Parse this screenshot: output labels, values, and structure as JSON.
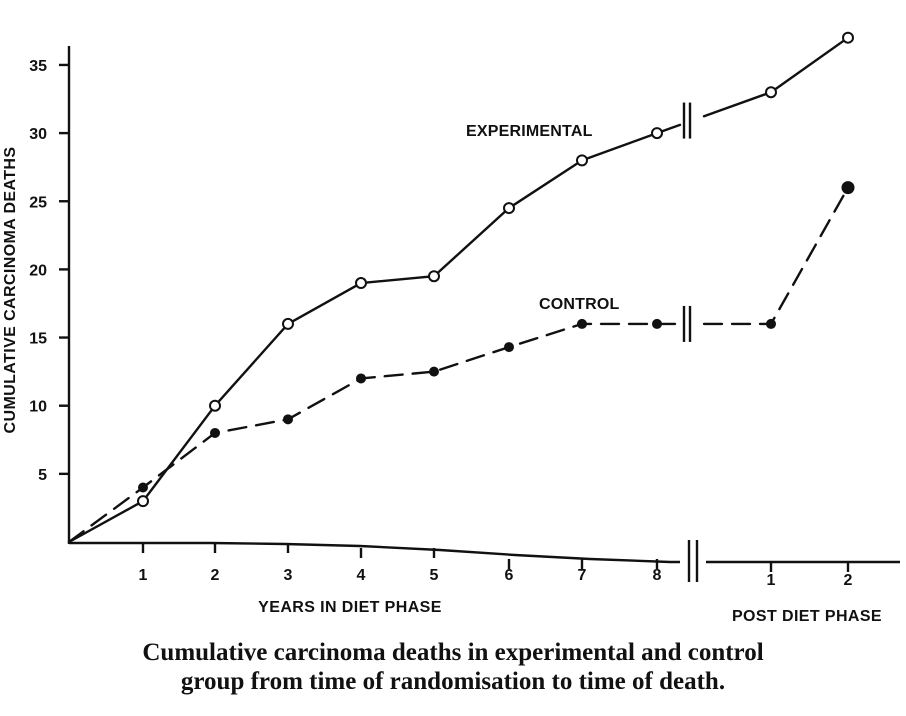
{
  "figure": {
    "caption_line_1": "Cumulative carcinoma deaths in experimental and control",
    "caption_line_2": "group from time of randomisation to time of death."
  },
  "chart_data": {
    "type": "line",
    "title": "",
    "xlabel": "YEARS IN DIET PHASE",
    "xlabel_2": "POST DIET PHASE",
    "ylabel": "CUMULATIVE CARCINOMA DEATHS",
    "ylim": [
      0,
      35
    ],
    "y_ticks": [
      5,
      10,
      15,
      20,
      25,
      30,
      35
    ],
    "y_tick_labels": [
      "5",
      "10",
      "15",
      "20",
      "25",
      "30",
      "35"
    ],
    "x_ticks": [
      {
        "label": "1",
        "phase": "diet",
        "year": 1
      },
      {
        "label": "2",
        "phase": "diet",
        "year": 2
      },
      {
        "label": "3",
        "phase": "diet",
        "year": 3
      },
      {
        "label": "4",
        "phase": "diet",
        "year": 4
      },
      {
        "label": "5",
        "phase": "diet",
        "year": 5
      },
      {
        "label": "6",
        "phase": "diet",
        "year": 6
      },
      {
        "label": "7",
        "phase": "diet",
        "year": 7
      },
      {
        "label": "8",
        "phase": "diet",
        "year": 8
      },
      {
        "label": "1",
        "phase": "post",
        "year": 1
      },
      {
        "label": "2",
        "phase": "post",
        "year": 2
      }
    ],
    "grid": false,
    "legend": "inline labels",
    "axis_break": "between diet year 8 and post diet year 1",
    "series": [
      {
        "name": "EXPERIMENTAL",
        "style": "solid",
        "marker": "open-circle",
        "points": [
          {
            "phase": "diet",
            "year": 0,
            "value": 0,
            "marker": false
          },
          {
            "phase": "diet",
            "year": 1,
            "value": 3
          },
          {
            "phase": "diet",
            "year": 2,
            "value": 10
          },
          {
            "phase": "diet",
            "year": 3,
            "value": 16
          },
          {
            "phase": "diet",
            "year": 4,
            "value": 19
          },
          {
            "phase": "diet",
            "year": 5,
            "value": 19.5
          },
          {
            "phase": "diet",
            "year": 6,
            "value": 24.5
          },
          {
            "phase": "diet",
            "year": 7,
            "value": 28
          },
          {
            "phase": "diet",
            "year": 8,
            "value": 30
          },
          {
            "phase": "post",
            "year": 1,
            "value": 33
          },
          {
            "phase": "post",
            "year": 2,
            "value": 37
          }
        ]
      },
      {
        "name": "CONTROL",
        "style": "dashed",
        "marker": "filled-circle",
        "points": [
          {
            "phase": "diet",
            "year": 0,
            "value": 0,
            "marker": false
          },
          {
            "phase": "diet",
            "year": 1,
            "value": 4
          },
          {
            "phase": "diet",
            "year": 2,
            "value": 8
          },
          {
            "phase": "diet",
            "year": 3,
            "value": 9
          },
          {
            "phase": "diet",
            "year": 4,
            "value": 12
          },
          {
            "phase": "diet",
            "year": 5,
            "value": 12.5
          },
          {
            "phase": "diet",
            "year": 6,
            "value": 14.3
          },
          {
            "phase": "diet",
            "year": 7,
            "value": 16
          },
          {
            "phase": "diet",
            "year": 8,
            "value": 16
          },
          {
            "phase": "post",
            "year": 1,
            "value": 16
          },
          {
            "phase": "post",
            "year": 2,
            "value": 26
          }
        ]
      }
    ]
  }
}
